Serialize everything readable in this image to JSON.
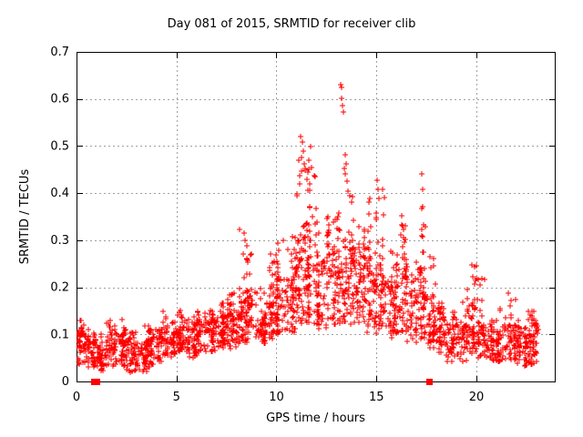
{
  "chart_data": {
    "type": "scatter",
    "title": "Day 081 of 2015, SRMTID for receiver clib",
    "xlabel": "GPS time / hours",
    "ylabel": "SRMTID / TECUs",
    "xlim": [
      0,
      23.92
    ],
    "ylim": [
      0,
      0.7
    ],
    "xticks": {
      "values": [
        0,
        5,
        10,
        15,
        20
      ],
      "labels": [
        "0",
        "5",
        "10",
        "15",
        "20"
      ]
    },
    "yticks": {
      "values": [
        0,
        0.1,
        0.2,
        0.3,
        0.4,
        0.5,
        0.6,
        0.7
      ],
      "labels": [
        "0",
        "0.1",
        "0.2",
        "0.3",
        "0.4",
        "0.5",
        "0.6",
        "0.7"
      ]
    },
    "grid": true,
    "legend": "none",
    "marker": "plus",
    "seed": 81,
    "colors": {
      "points": "#ff0000",
      "grid": "#a0a0a0",
      "axis": "#000000",
      "text": "#000000",
      "background": "#ffffff"
    },
    "profile_format": "[x_start_hr, x_end_hr, n_points, y_band_low, y_band_high, y_max] - dense scatter band read from plot",
    "series": [
      {
        "name": "SRMTID",
        "marker": "plus",
        "profile": [
          [
            0.0,
            0.5,
            55,
            0.03,
            0.1,
            0.13
          ],
          [
            0.5,
            1.0,
            50,
            0.03,
            0.09,
            0.11
          ],
          [
            1.0,
            1.5,
            45,
            0.02,
            0.07,
            0.1
          ],
          [
            1.5,
            2.0,
            45,
            0.03,
            0.09,
            0.13
          ],
          [
            2.0,
            2.5,
            50,
            0.03,
            0.1,
            0.13
          ],
          [
            2.5,
            3.0,
            45,
            0.02,
            0.08,
            0.11
          ],
          [
            3.0,
            3.5,
            45,
            0.02,
            0.08,
            0.12
          ],
          [
            3.5,
            4.0,
            45,
            0.03,
            0.09,
            0.12
          ],
          [
            4.0,
            4.5,
            50,
            0.04,
            0.11,
            0.15
          ],
          [
            4.5,
            5.0,
            50,
            0.05,
            0.11,
            0.13
          ],
          [
            5.0,
            5.5,
            50,
            0.06,
            0.12,
            0.15
          ],
          [
            5.5,
            6.0,
            50,
            0.05,
            0.12,
            0.14
          ],
          [
            6.0,
            6.5,
            50,
            0.06,
            0.13,
            0.15
          ],
          [
            6.5,
            7.0,
            50,
            0.06,
            0.13,
            0.16
          ],
          [
            7.0,
            7.5,
            55,
            0.07,
            0.14,
            0.17
          ],
          [
            7.5,
            8.0,
            55,
            0.07,
            0.15,
            0.19
          ],
          [
            8.0,
            8.5,
            55,
            0.08,
            0.17,
            0.31
          ],
          [
            8.5,
            9.0,
            50,
            0.08,
            0.19,
            0.3
          ],
          [
            9.0,
            9.5,
            50,
            0.08,
            0.17,
            0.22
          ],
          [
            9.5,
            10.0,
            50,
            0.09,
            0.19,
            0.27
          ],
          [
            10.0,
            10.5,
            55,
            0.1,
            0.22,
            0.3
          ],
          [
            10.5,
            11.0,
            55,
            0.1,
            0.24,
            0.31
          ],
          [
            11.0,
            11.5,
            60,
            0.12,
            0.3,
            0.5
          ],
          [
            11.5,
            12.0,
            60,
            0.12,
            0.31,
            0.46
          ],
          [
            12.0,
            12.5,
            55,
            0.11,
            0.26,
            0.35
          ],
          [
            12.5,
            13.0,
            55,
            0.12,
            0.27,
            0.35
          ],
          [
            13.0,
            13.5,
            60,
            0.12,
            0.3,
            0.57
          ],
          [
            13.5,
            14.0,
            60,
            0.12,
            0.3,
            0.46
          ],
          [
            14.0,
            14.5,
            55,
            0.1,
            0.26,
            0.33
          ],
          [
            14.5,
            15.0,
            55,
            0.1,
            0.26,
            0.4
          ],
          [
            15.0,
            15.5,
            55,
            0.1,
            0.24,
            0.42
          ],
          [
            15.5,
            16.0,
            50,
            0.09,
            0.22,
            0.28
          ],
          [
            16.0,
            16.5,
            55,
            0.1,
            0.25,
            0.36
          ],
          [
            16.5,
            17.0,
            50,
            0.08,
            0.2,
            0.26
          ],
          [
            17.0,
            17.5,
            55,
            0.09,
            0.24,
            0.42
          ],
          [
            17.5,
            18.0,
            50,
            0.07,
            0.18,
            0.3
          ],
          [
            18.0,
            18.5,
            50,
            0.06,
            0.15,
            0.18
          ],
          [
            18.5,
            19.0,
            45,
            0.04,
            0.12,
            0.15
          ],
          [
            19.0,
            19.5,
            45,
            0.04,
            0.12,
            0.17
          ],
          [
            19.5,
            20.0,
            50,
            0.06,
            0.16,
            0.25
          ],
          [
            20.0,
            20.5,
            45,
            0.05,
            0.12,
            0.22
          ],
          [
            20.5,
            21.0,
            45,
            0.04,
            0.11,
            0.14
          ],
          [
            21.0,
            21.5,
            45,
            0.04,
            0.11,
            0.16
          ],
          [
            21.5,
            22.0,
            45,
            0.04,
            0.12,
            0.19
          ],
          [
            22.0,
            22.5,
            50,
            0.03,
            0.11,
            0.15
          ],
          [
            22.5,
            23.1,
            60,
            0.03,
            0.12,
            0.15
          ]
        ],
        "outliers": [
          [
            13.22,
            0.631
          ],
          [
            13.28,
            0.624
          ],
          [
            13.27,
            0.601
          ],
          [
            13.3,
            0.585
          ],
          [
            13.33,
            0.572
          ],
          [
            13.38,
            0.452
          ],
          [
            13.45,
            0.482
          ],
          [
            13.5,
            0.462
          ],
          [
            13.42,
            0.44
          ],
          [
            13.55,
            0.425
          ],
          [
            13.6,
            0.405
          ],
          [
            11.22,
            0.52
          ],
          [
            11.28,
            0.508
          ],
          [
            11.33,
            0.49
          ],
          [
            11.27,
            0.476
          ],
          [
            11.38,
            0.462
          ],
          [
            11.45,
            0.448
          ],
          [
            11.18,
            0.437
          ],
          [
            11.52,
            0.43
          ],
          [
            11.62,
            0.47
          ],
          [
            11.7,
            0.498
          ],
          [
            11.75,
            0.455
          ],
          [
            14.62,
            0.381
          ],
          [
            15.02,
            0.428
          ],
          [
            15.07,
            0.408
          ],
          [
            15.12,
            0.388
          ],
          [
            17.28,
            0.441
          ],
          [
            17.3,
            0.408
          ],
          [
            17.33,
            0.371
          ],
          [
            17.36,
            0.332
          ],
          [
            17.25,
            0.31
          ],
          [
            8.38,
            0.315
          ],
          [
            8.45,
            0.3
          ],
          [
            8.52,
            0.288
          ],
          [
            8.33,
            0.27
          ],
          [
            8.15,
            0.323
          ],
          [
            16.28,
            0.352
          ],
          [
            16.33,
            0.33
          ],
          [
            16.2,
            0.312
          ],
          [
            12.58,
            0.35
          ],
          [
            12.63,
            0.332
          ],
          [
            10.32,
            0.3
          ],
          [
            10.82,
            0.308
          ],
          [
            9.72,
            0.27
          ],
          [
            19.78,
            0.248
          ],
          [
            19.83,
            0.222
          ],
          [
            20.28,
            0.218
          ],
          [
            5.2,
            0.15
          ],
          [
            4.35,
            0.148
          ],
          [
            2.3,
            0.131
          ],
          [
            7.8,
            0.186
          ],
          [
            21.6,
            0.188
          ],
          [
            22.8,
            0.148
          ],
          [
            18.9,
            0.146
          ],
          [
            19.3,
            0.168
          ]
        ]
      },
      {
        "name": "zero-flags",
        "marker": "filled-square",
        "points": [
          [
            0.88,
            0
          ],
          [
            1.02,
            0
          ],
          [
            17.63,
            0
          ]
        ]
      }
    ]
  }
}
